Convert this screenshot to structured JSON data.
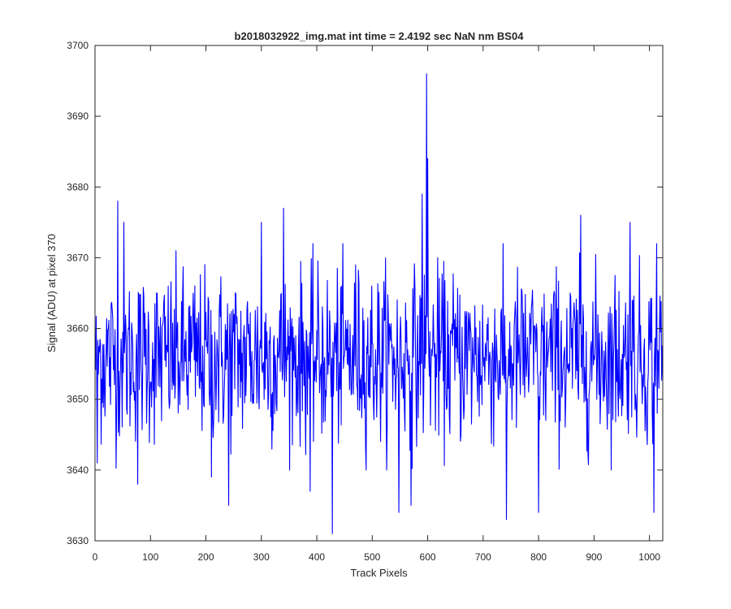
{
  "chart_data": {
    "type": "line",
    "title": "b2018032922_img.mat int time = 2.4192 sec  NaN nm BS04",
    "xlabel": "Track Pixels",
    "ylabel": "Signal (ADU) at pixel 370",
    "xlim": [
      0,
      1024
    ],
    "ylim": [
      3630,
      3700
    ],
    "xticks": [
      0,
      100,
      200,
      300,
      400,
      500,
      600,
      700,
      800,
      900,
      1000
    ],
    "yticks": [
      3630,
      3640,
      3650,
      3660,
      3670,
      3680,
      3690,
      3700
    ],
    "grid": false,
    "legend": "none",
    "series": [
      {
        "color": "#0000ff",
        "x_start": 1,
        "x_step": 1,
        "count": 1024,
        "mean": 3656,
        "noise_std": 6,
        "notable_points": [
          {
            "x": 4,
            "y": 3641
          },
          {
            "x": 41,
            "y": 3678
          },
          {
            "x": 52,
            "y": 3675
          },
          {
            "x": 77,
            "y": 3638
          },
          {
            "x": 210,
            "y": 3639
          },
          {
            "x": 241,
            "y": 3635
          },
          {
            "x": 300,
            "y": 3675
          },
          {
            "x": 340,
            "y": 3677
          },
          {
            "x": 388,
            "y": 3637
          },
          {
            "x": 428,
            "y": 3631
          },
          {
            "x": 470,
            "y": 3669
          },
          {
            "x": 548,
            "y": 3634
          },
          {
            "x": 570,
            "y": 3635
          },
          {
            "x": 590,
            "y": 3679
          },
          {
            "x": 598,
            "y": 3696
          },
          {
            "x": 600,
            "y": 3684
          },
          {
            "x": 742,
            "y": 3633
          },
          {
            "x": 800,
            "y": 3634
          },
          {
            "x": 876,
            "y": 3676
          },
          {
            "x": 965,
            "y": 3675
          },
          {
            "x": 1008,
            "y": 3634
          },
          {
            "x": 1013,
            "y": 3672
          }
        ]
      }
    ]
  }
}
